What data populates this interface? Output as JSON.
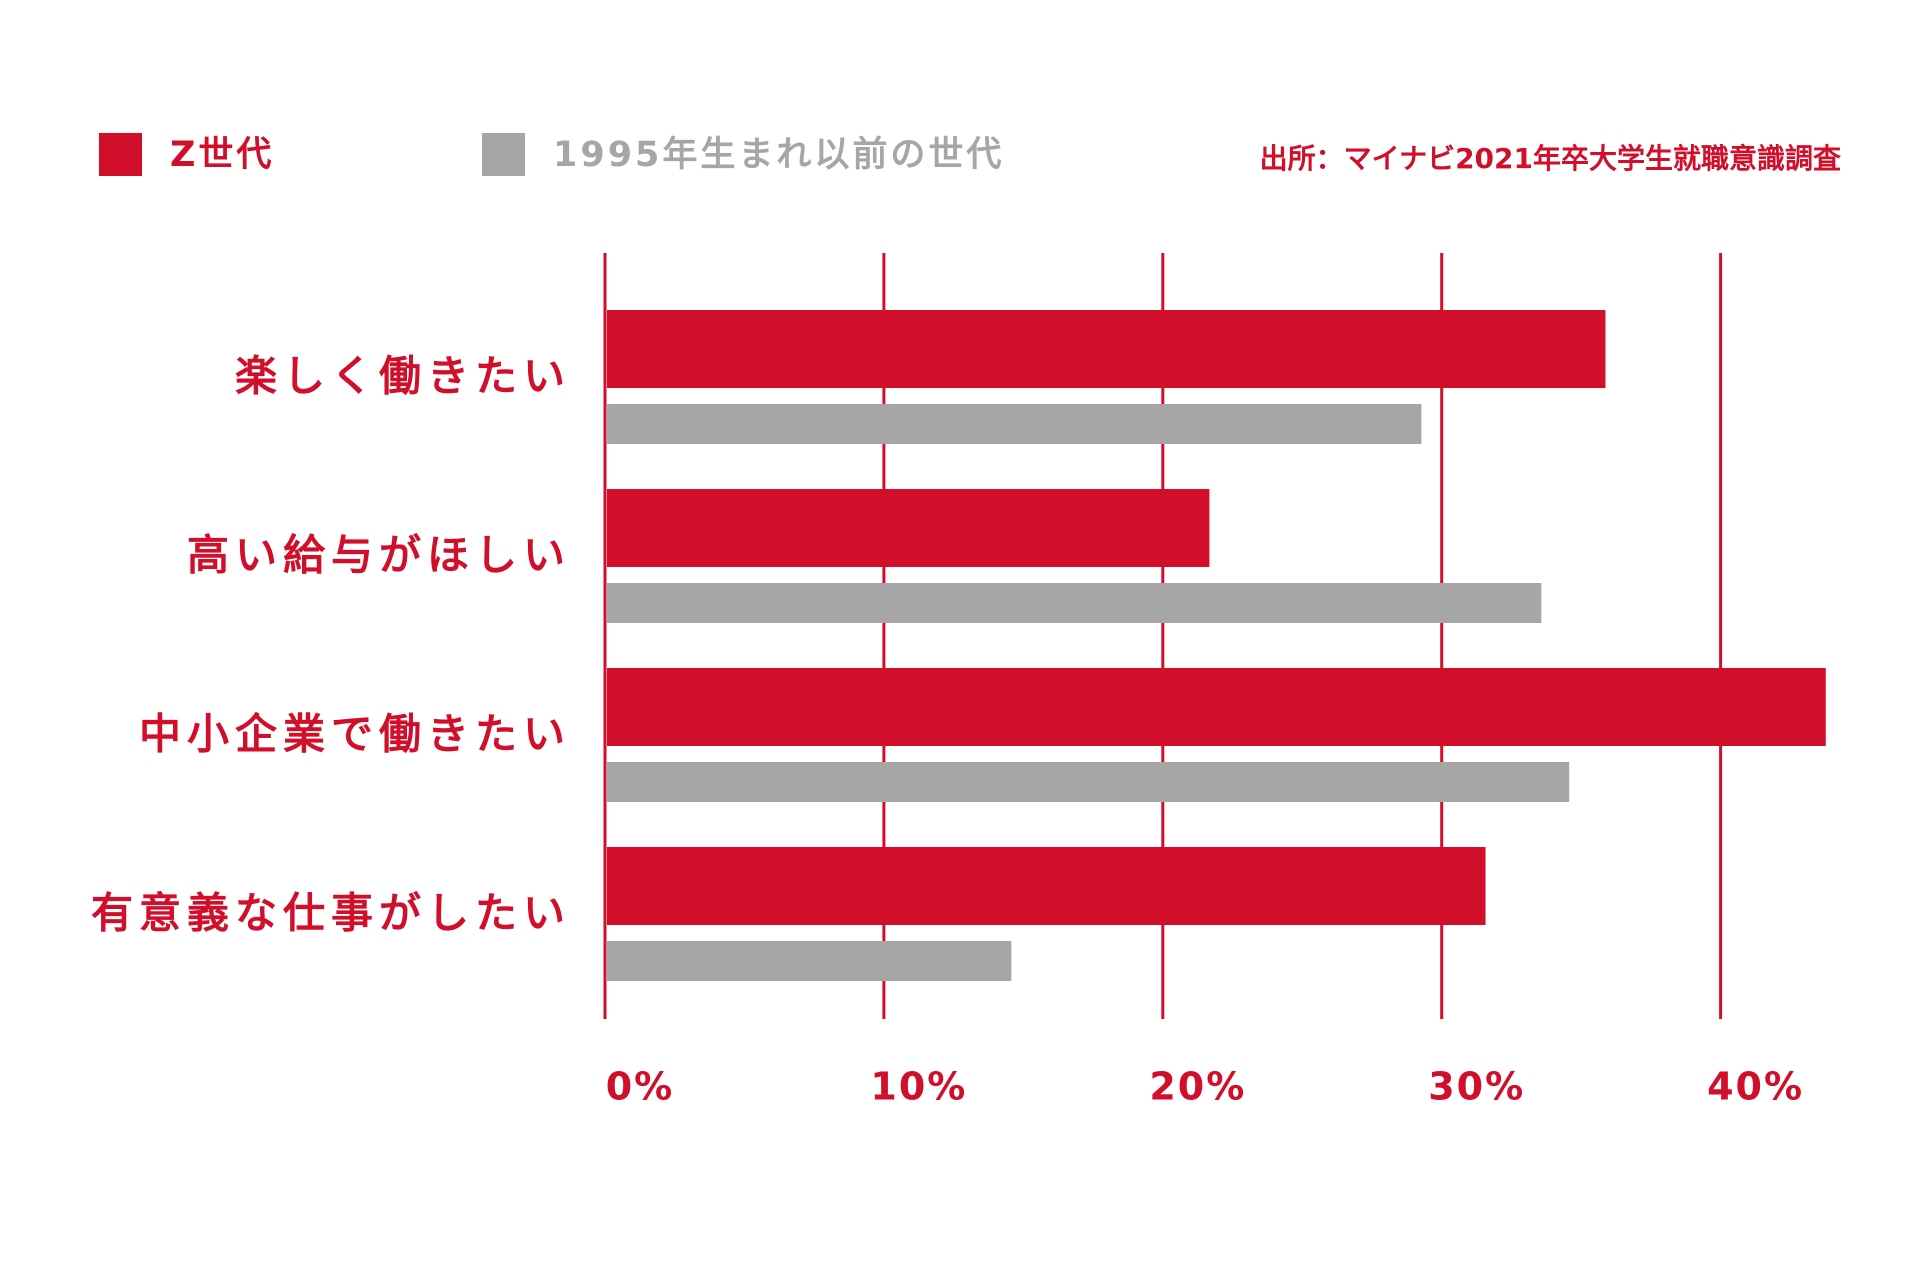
{
  "chart_data": {
    "type": "bar",
    "orientation": "horizontal",
    "source": "出所：マイナビ2021年卒大学生就職意識調査",
    "categories": [
      "楽しく働きたい",
      "高い給与がほしい",
      "中小企業で働きたい",
      "有意義な仕事がしたい"
    ],
    "series": [
      {
        "name": "Z世代",
        "color": "#d20f2a",
        "values": [
          35.8,
          21.6,
          43.7,
          31.5
        ]
      },
      {
        "name": "1995年生まれ以前の世代",
        "color": "#a6a6a6",
        "values": [
          29.2,
          33.5,
          34.5,
          14.5
        ]
      }
    ],
    "xlim": [
      0,
      40
    ],
    "xticks": [
      {
        "value": 0,
        "label": "0%"
      },
      {
        "value": 10,
        "label": "10%"
      },
      {
        "value": 20,
        "label": "20%"
      },
      {
        "value": 30,
        "label": "30%"
      },
      {
        "value": 40,
        "label": "40%"
      }
    ],
    "grid": true,
    "grid_color": "#d20f2a",
    "label_color": "#d20f2a"
  }
}
